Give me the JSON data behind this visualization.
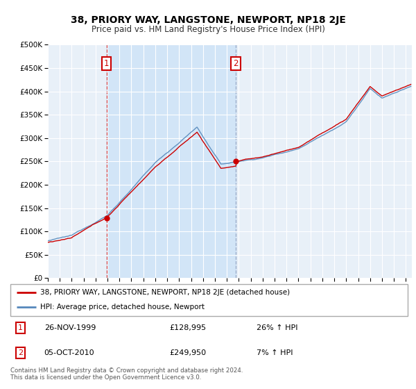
{
  "title": "38, PRIORY WAY, LANGSTONE, NEWPORT, NP18 2JE",
  "subtitle": "Price paid vs. HM Land Registry's House Price Index (HPI)",
  "sale1_date_num": 1999.917,
  "sale1_price": 128995,
  "sale2_date_num": 2010.75,
  "sale2_price": 249950,
  "legend_line1": "38, PRIORY WAY, LANGSTONE, NEWPORT, NP18 2JE (detached house)",
  "legend_line2": "HPI: Average price, detached house, Newport",
  "table_row1": [
    "1",
    "26-NOV-1999",
    "£128,995",
    "26% ↑ HPI"
  ],
  "table_row2": [
    "2",
    "05-OCT-2010",
    "£249,950",
    "7% ↑ HPI"
  ],
  "footer": "Contains HM Land Registry data © Crown copyright and database right 2024.\nThis data is licensed under the Open Government Licence v3.0.",
  "red_color": "#cc0000",
  "blue_color": "#5588bb",
  "shade_color": "#d0e4f7",
  "background_color": "#e8f0f8",
  "ylim": [
    0,
    500000
  ],
  "yticks": [
    0,
    50000,
    100000,
    150000,
    200000,
    250000,
    300000,
    350000,
    400000,
    450000,
    500000
  ],
  "xlim_start": 1995,
  "xlim_end": 2025.5
}
